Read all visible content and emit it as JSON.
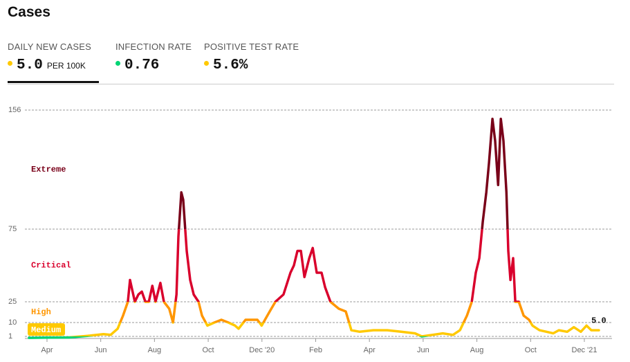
{
  "header": {
    "title": "Cases",
    "tabs": [
      {
        "label": "DAILY NEW CASES",
        "value": "5.0",
        "unit": "PER 100K",
        "color": "#ffc900"
      },
      {
        "label": "INFECTION RATE",
        "value": "0.76",
        "color": "#00d474"
      },
      {
        "label": "POSITIVE TEST RATE",
        "value": "5.6%",
        "color": "#ffc900"
      }
    ]
  },
  "chart_data": {
    "type": "line",
    "x": [
      2.33,
      3.0,
      3.82,
      4.6,
      5.1,
      5.37,
      5.63,
      5.83,
      6.01,
      6.09,
      6.27,
      6.4,
      6.53,
      6.66,
      6.79,
      6.92,
      7.04,
      7.22,
      7.35,
      7.55,
      7.69,
      7.82,
      7.89,
      8.0,
      8.07,
      8.2,
      8.33,
      8.46,
      8.64,
      8.77,
      8.97,
      9.23,
      9.49,
      9.75,
      10.0,
      10.13,
      10.39,
      10.65,
      10.83,
      10.99,
      11.29,
      11.5,
      11.8,
      12.06,
      12.19,
      12.32,
      12.45,
      12.58,
      12.76,
      12.89,
      13.04,
      13.22,
      13.35,
      13.55,
      13.86,
      14.12,
      14.33,
      14.64,
      15.15,
      15.67,
      16.18,
      16.7,
      16.95,
      17.34,
      17.73,
      18.11,
      18.37,
      18.63,
      18.81,
      18.96,
      19.09,
      19.22,
      19.35,
      19.45,
      19.58,
      19.68,
      19.79,
      19.89,
      19.99,
      20.1,
      20.17,
      20.25,
      20.35,
      20.43,
      20.56,
      20.74,
      20.94,
      21.07,
      21.33,
      21.59,
      21.84,
      22.05,
      22.36,
      22.61,
      22.87,
      23.08,
      23.26,
      23.54
    ],
    "series": [
      {
        "name": "Daily new cases",
        "values": [
          0.3,
          0.4,
          0.5,
          1.5,
          2.5,
          2,
          6,
          15,
          25,
          40,
          25,
          30,
          32,
          25,
          25,
          36,
          25,
          38,
          25,
          20,
          10,
          30,
          70,
          100,
          95,
          60,
          40,
          30,
          25,
          15,
          8,
          10,
          12,
          10,
          8,
          6,
          12,
          12,
          12,
          8,
          18,
          25,
          30,
          45,
          50,
          60,
          60,
          42,
          55,
          62,
          45,
          45,
          35,
          25,
          20,
          18,
          5,
          4,
          5,
          5,
          4,
          3,
          1,
          2,
          3,
          2,
          5,
          15,
          25,
          45,
          55,
          80,
          100,
          120,
          150,
          135,
          105,
          150,
          135,
          100,
          60,
          40,
          55,
          25,
          25,
          15,
          12,
          8,
          5,
          4,
          3,
          5,
          4,
          7,
          4,
          8,
          5,
          5.0
        ]
      }
    ],
    "low_color": "#00d474",
    "zones": [
      {
        "name": "Medium",
        "min": 1,
        "color": "#ffc900"
      },
      {
        "name": "High",
        "min": 10,
        "color": "#ff9600"
      },
      {
        "name": "Critical",
        "min": 25,
        "color": "#d9002c"
      },
      {
        "name": "Extreme",
        "min": 75,
        "color": "#790019"
      }
    ],
    "annotation": "5.0",
    "xlim": [
      2.28,
      24.03
    ],
    "xticks": [
      {
        "value": 3,
        "label": "Apr"
      },
      {
        "value": 5,
        "label": "Jun"
      },
      {
        "value": 7,
        "label": "Aug"
      },
      {
        "value": 9,
        "label": "Oct"
      },
      {
        "value": 11,
        "label": "Dec '20"
      },
      {
        "value": 13,
        "label": "Feb"
      },
      {
        "value": 15,
        "label": "Apr"
      },
      {
        "value": 17,
        "label": "Jun"
      },
      {
        "value": 19,
        "label": "Aug"
      },
      {
        "value": 21,
        "label": "Oct"
      },
      {
        "value": 23,
        "label": "Dec '21"
      }
    ],
    "ylim": [
      0,
      156
    ],
    "yticks": [
      1,
      10,
      25,
      75,
      156
    ],
    "grid": true
  }
}
